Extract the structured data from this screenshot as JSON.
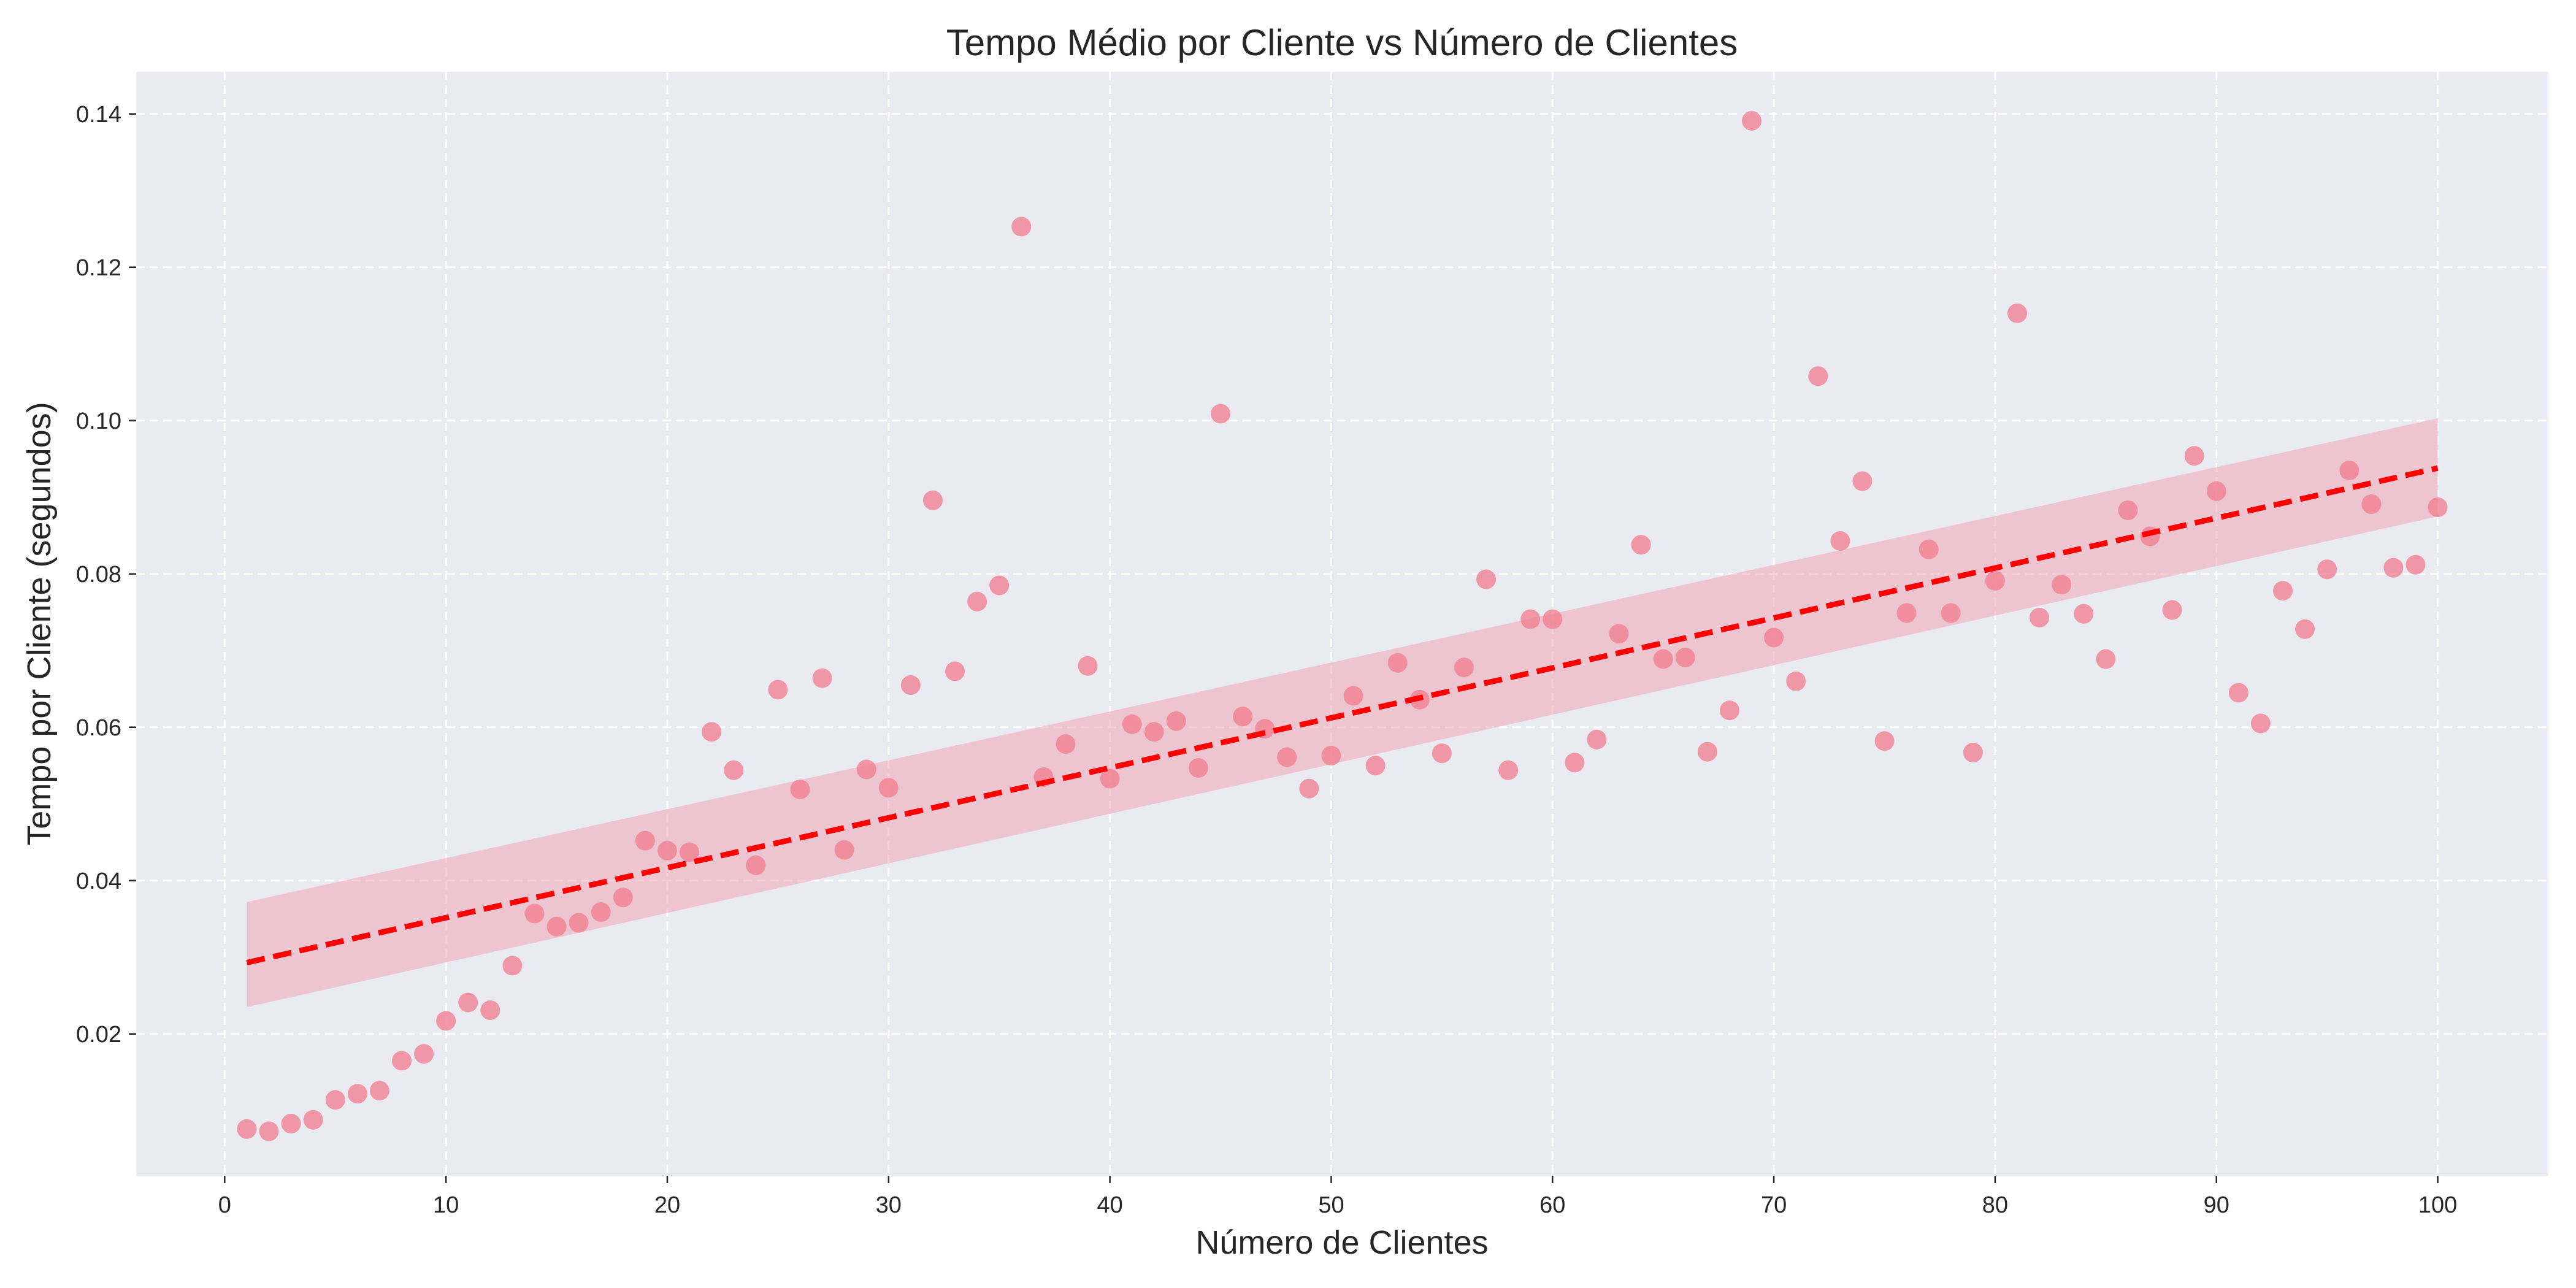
{
  "chart_data": {
    "type": "scatter",
    "title": "Tempo Médio por Cliente vs Número de Clientes",
    "xlabel": "Número de Clientes",
    "ylabel": "Tempo por Cliente (segundos)",
    "xlim": [
      -4,
      105
    ],
    "ylim": [
      0.0015,
      0.1455
    ],
    "xticks": [
      0,
      10,
      20,
      30,
      40,
      50,
      60,
      70,
      80,
      90,
      100
    ],
    "yticks": [
      0.02,
      0.04,
      0.06,
      0.08,
      0.1,
      0.12,
      0.14
    ],
    "ytick_labels": [
      "0.02",
      "0.04",
      "0.06",
      "0.08",
      "0.10",
      "0.12",
      "0.14"
    ],
    "grid": true,
    "background_color": "#eaeaf2",
    "point_color": "#f07b8e",
    "trend_color": "#ff0000",
    "band_color": "#f0a0ae",
    "series": [
      {
        "x": [
          1,
          2,
          3,
          4,
          5,
          6,
          7,
          8,
          9,
          10,
          11,
          12,
          13,
          14,
          15,
          16,
          17,
          18,
          19,
          20,
          21,
          22,
          23,
          24,
          25,
          26,
          27,
          28,
          29,
          30,
          31,
          32,
          33,
          34,
          35,
          36,
          37,
          38,
          39,
          40,
          41,
          42,
          43,
          44,
          45,
          46,
          47,
          48,
          49,
          50,
          51,
          52,
          53,
          54,
          55,
          56,
          57,
          58,
          59,
          60,
          61,
          62,
          63,
          64,
          65,
          66,
          67,
          68,
          69,
          70,
          71,
          72,
          73,
          74,
          75,
          76,
          77,
          78,
          79,
          80,
          81,
          82,
          83,
          84,
          85,
          86,
          87,
          88,
          89,
          90,
          91,
          92,
          93,
          94,
          95,
          96,
          97,
          98,
          99,
          100
        ],
        "y": [
          0.0076,
          0.0073,
          0.0083,
          0.0088,
          0.0114,
          0.0122,
          0.0126,
          0.0165,
          0.0174,
          0.0217,
          0.0241,
          0.0231,
          0.0289,
          0.0357,
          0.034,
          0.0345,
          0.0359,
          0.0378,
          0.0452,
          0.0439,
          0.0437,
          0.0594,
          0.0544,
          0.042,
          0.0649,
          0.0519,
          0.0664,
          0.044,
          0.0545,
          0.0521,
          0.0655,
          0.0896,
          0.0673,
          0.0764,
          0.0785,
          0.1253,
          0.0535,
          0.0578,
          0.068,
          0.0533,
          0.0604,
          0.0594,
          0.0608,
          0.0547,
          0.1009,
          0.0614,
          0.0598,
          0.0561,
          0.052,
          0.0563,
          0.0641,
          0.055,
          0.0684,
          0.0636,
          0.0566,
          0.0678,
          0.0793,
          0.0544,
          0.0741,
          0.0741,
          0.0554,
          0.0584,
          0.0722,
          0.0838,
          0.0689,
          0.0691,
          0.0568,
          0.0622,
          0.1391,
          0.0717,
          0.066,
          0.1058,
          0.0843,
          0.0921,
          0.0582,
          0.0749,
          0.0832,
          0.0749,
          0.0567,
          0.0791,
          0.114,
          0.0743,
          0.0786,
          0.0748,
          0.0689,
          0.0883,
          0.0849,
          0.0753,
          0.0954,
          0.0908,
          0.0645,
          0.0605,
          0.0778,
          0.0728,
          0.0806,
          0.0935,
          0.0891,
          0.0808,
          0.0812,
          0.0887
        ]
      }
    ],
    "trend_line": {
      "x": [
        1,
        100
      ],
      "y": [
        0.0293,
        0.0938
      ]
    },
    "confidence_band": {
      "x": [
        1,
        100
      ],
      "lower": [
        0.0235,
        0.0875
      ],
      "upper": [
        0.0372,
        0.1003
      ]
    }
  }
}
